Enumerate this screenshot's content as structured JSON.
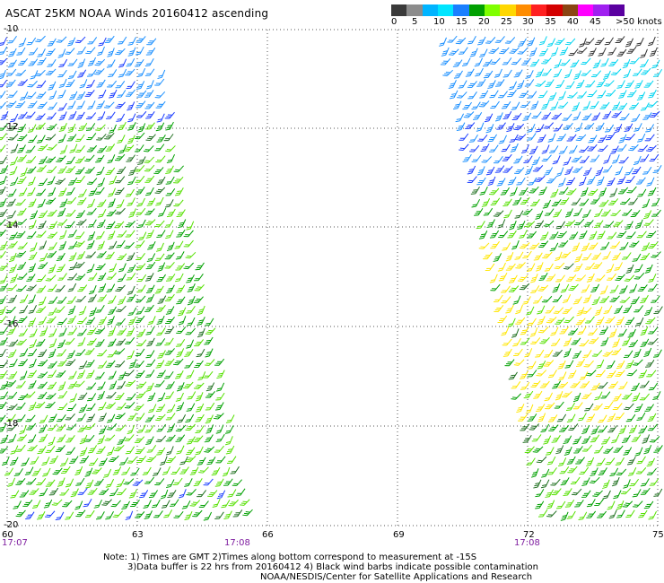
{
  "title": "ASCAT 25KM NOAA Winds 20160412 ascending",
  "colorbar": {
    "colors": [
      "#3a3a3a",
      "#8c8c8c",
      "#00b4ff",
      "#00e5ff",
      "#1a7fff",
      "#00a000",
      "#7fff00",
      "#ffd700",
      "#ff8c00",
      "#ff2020",
      "#d40000",
      "#8b4513",
      "#ff00ff",
      "#a020f0",
      "#5a00a0"
    ],
    "labels": [
      "0",
      "5",
      "10",
      "15",
      "20",
      "25",
      "30",
      "35",
      "40",
      "45",
      ">50 knots"
    ]
  },
  "axes": {
    "lat_labels": [
      "-10",
      "-12",
      "-14",
      "-16",
      "-18",
      "-20"
    ],
    "lon_labels": [
      "60",
      "63",
      "66",
      "69",
      "72",
      "75"
    ]
  },
  "times": [
    "17:07",
    "17:08",
    "17:08"
  ],
  "notes": {
    "line1": "Note: 1) Times are GMT 2)Times along bottom correspond to measurement at -15S",
    "line2": "3)Data buffer is 22 hrs from 20160412 4) Black wind barbs indicate possible contamination",
    "line3": "NOAA/NESDIS/Center for Satellite Applications and Research"
  }
}
